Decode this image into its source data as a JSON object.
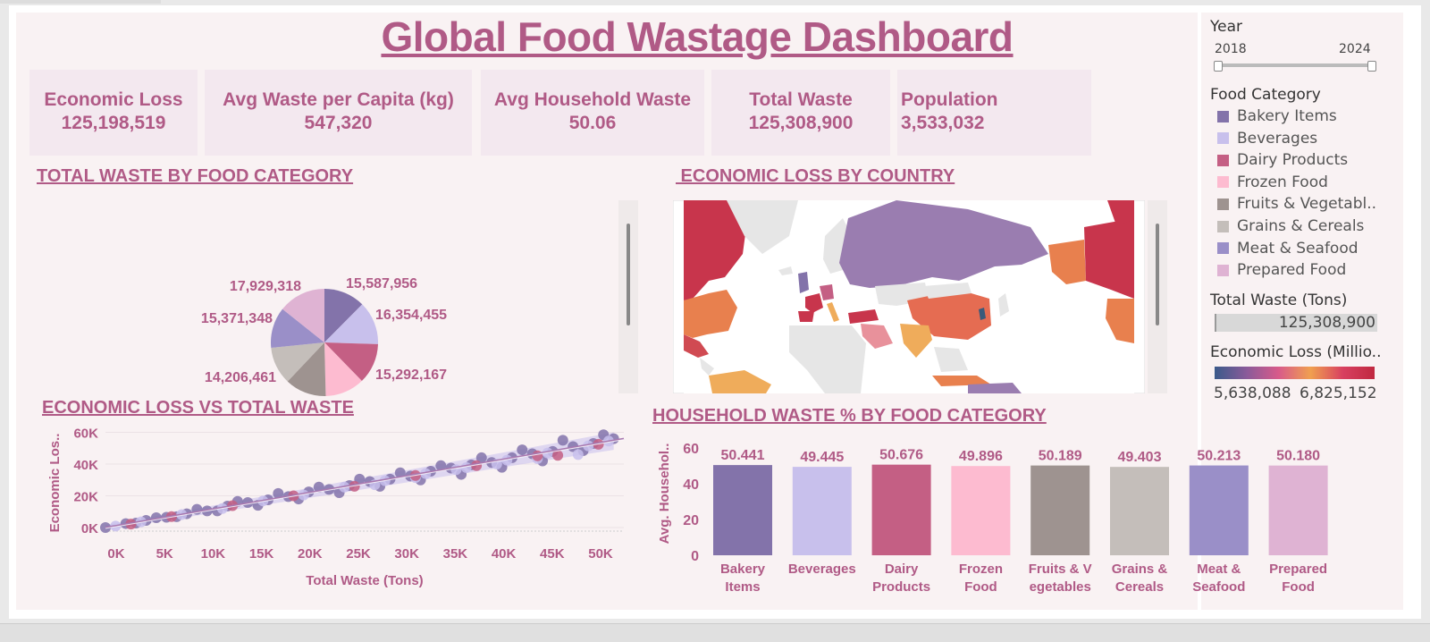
{
  "title": "Global Food Wastage Dashboard",
  "kpis": [
    {
      "label": "Economic Loss",
      "value": "125,198,519"
    },
    {
      "label": "Avg Waste per Capita (kg)",
      "value": "547,320"
    },
    {
      "label": "Avg Household Waste",
      "value": "50.06"
    },
    {
      "label": "Total Waste",
      "value": "125,308,900"
    },
    {
      "label": "Population",
      "value": "3,533,032"
    }
  ],
  "sections": {
    "pie": "TOTAL WASTE BY FOOD CATEGORY",
    "map": " ECONOMIC LOSS BY COUNTRY",
    "scatter": "ECONOMIC LOSS VS TOTAL WASTE",
    "bar": "HOUSEHOLD WASTE % BY FOOD CATEGORY"
  },
  "filters": {
    "year_title": "Year",
    "year_min": "2018",
    "year_max": "2024",
    "category_title": "Food Category",
    "categories": [
      {
        "label": "Bakery Items",
        "color": "#8373aa"
      },
      {
        "label": "Beverages",
        "color": "#c8c0ec"
      },
      {
        "label": "Dairy Products",
        "color": "#c45f84"
      },
      {
        "label": "Frozen Food",
        "color": "#fdbbd0"
      },
      {
        "label": "Fruits & Vegetabl..",
        "color": "#9e9390"
      },
      {
        "label": "Grains & Cereals",
        "color": "#c4beba"
      },
      {
        "label": "Meat & Seafood",
        "color": "#9a8fc8"
      },
      {
        "label": "Prepared Food",
        "color": "#dfb3d3"
      }
    ],
    "total_waste_title": "Total Waste (Tons)",
    "total_waste_value": "125,308,900",
    "econ_title": "Economic Loss (Millio..",
    "econ_min": "5,638,088",
    "econ_max": "6,825,152"
  },
  "chart_data": [
    {
      "type": "pie",
      "title": "TOTAL WASTE BY FOOD CATEGORY",
      "slices": [
        {
          "category": "Bakery Items",
          "value": 15587956,
          "label": "15,587,956",
          "color": "#8373aa"
        },
        {
          "category": "Beverages",
          "value": 16354455,
          "label": "16,354,455",
          "color": "#c8c0ec"
        },
        {
          "category": "Dairy Products",
          "value": 15292167,
          "label": "15,292,167",
          "color": "#c45f84"
        },
        {
          "category": "Frozen Food",
          "value": 14900000,
          "label": "",
          "color": "#fdbbd0"
        },
        {
          "category": "Fruits & Vegetables",
          "value": 15600000,
          "label": "",
          "color": "#9e9390"
        },
        {
          "category": "Grains & Cereals",
          "value": 14206461,
          "label": "14,206,461",
          "color": "#c4beba"
        },
        {
          "category": "Meat & Seafood",
          "value": 15371348,
          "label": "15,371,348",
          "color": "#9a8fc8"
        },
        {
          "category": "Prepared Food",
          "value": 17929318,
          "label": "17,929,318",
          "color": "#dfb3d3"
        }
      ]
    },
    {
      "type": "scatter",
      "title": "ECONOMIC LOSS VS TOTAL WASTE",
      "xlabel": "Total Waste (Tons)",
      "ylabel": "Economic Los..",
      "xticks": [
        "0K",
        "5K",
        "10K",
        "15K",
        "20K",
        "25K",
        "30K",
        "35K",
        "40K",
        "45K",
        "50K"
      ],
      "yticks": [
        "0K",
        "20K",
        "40K",
        "60K"
      ],
      "xlim": [
        0,
        51000
      ],
      "ylim": [
        0,
        62000
      ],
      "trend": {
        "x": [
          0,
          51000
        ],
        "y": [
          0,
          56000
        ]
      },
      "series": [
        {
          "color": "#8373aa",
          "points": [
            [
              0,
              0
            ],
            [
              2000,
              2500
            ],
            [
              4000,
              4500
            ],
            [
              6000,
              6500
            ],
            [
              8000,
              8700
            ],
            [
              10000,
              10500
            ],
            [
              12000,
              13500
            ],
            [
              14000,
              15800
            ],
            [
              16000,
              17500
            ],
            [
              18000,
              19500
            ],
            [
              20000,
              22500
            ],
            [
              22000,
              24000
            ],
            [
              24000,
              26500
            ],
            [
              26000,
              29000
            ],
            [
              28000,
              30500
            ],
            [
              30000,
              32500
            ],
            [
              32000,
              35500
            ],
            [
              34000,
              37500
            ],
            [
              36000,
              39500
            ],
            [
              38000,
              41000
            ],
            [
              40000,
              44000
            ],
            [
              42000,
              46500
            ],
            [
              44000,
              48000
            ],
            [
              46000,
              51000
            ],
            [
              48000,
              53000
            ],
            [
              50000,
              56000
            ],
            [
              49000,
              58500
            ],
            [
              47000,
              48500
            ],
            [
              45000,
              55000
            ],
            [
              43000,
              42000
            ],
            [
              41000,
              49000
            ],
            [
              39000,
              38000
            ],
            [
              37000,
              44000
            ],
            [
              35000,
              33500
            ],
            [
              33000,
              39000
            ],
            [
              31000,
              30000
            ],
            [
              29000,
              34500
            ],
            [
              27000,
              26000
            ],
            [
              25000,
              30500
            ],
            [
              23000,
              22000
            ],
            [
              21000,
              25500
            ],
            [
              19000,
              18000
            ],
            [
              17000,
              21500
            ],
            [
              15000,
              14000
            ],
            [
              13000,
              16500
            ],
            [
              11000,
              10500
            ],
            [
              9000,
              11500
            ],
            [
              7000,
              6800
            ],
            [
              5000,
              6200
            ],
            [
              3000,
              2800
            ]
          ]
        },
        {
          "color": "#c8c0ec",
          "points": [
            [
              1000,
              900
            ],
            [
              3500,
              3600
            ],
            [
              7500,
              8200
            ],
            [
              11500,
              12000
            ],
            [
              15500,
              16800
            ],
            [
              19500,
              20500
            ],
            [
              23500,
              25500
            ],
            [
              27500,
              29500
            ],
            [
              31500,
              34000
            ],
            [
              35500,
              37800
            ],
            [
              39500,
              42500
            ],
            [
              43500,
              47000
            ],
            [
              47500,
              51500
            ],
            [
              49500,
              54500
            ],
            [
              46500,
              46000
            ],
            [
              42500,
              43500
            ],
            [
              38500,
              40000
            ],
            [
              34500,
              36500
            ],
            [
              30500,
              31500
            ],
            [
              26500,
              27000
            ]
          ]
        },
        {
          "color": "#c45f84",
          "points": [
            [
              2500,
              2200
            ],
            [
              6500,
              6900
            ],
            [
              12500,
              13800
            ],
            [
              18500,
              20000
            ],
            [
              24500,
              26000
            ],
            [
              30500,
              32800
            ],
            [
              36500,
              39000
            ],
            [
              42500,
              45200
            ],
            [
              48500,
              52500
            ],
            [
              44500,
              45500
            ]
          ]
        }
      ]
    },
    {
      "type": "bar",
      "title": "HOUSEHOLD WASTE % BY FOOD CATEGORY",
      "ylabel": "Avg. Househol..",
      "yticks": [
        "0",
        "20",
        "40",
        "60"
      ],
      "ylim": [
        0,
        60
      ],
      "categories": [
        {
          "line1": "Bakery",
          "line2": "Items"
        },
        {
          "line1": "Beverages",
          "line2": ""
        },
        {
          "line1": "Dairy",
          "line2": "Products"
        },
        {
          "line1": "Frozen",
          "line2": "Food"
        },
        {
          "line1": "Fruits & V",
          "line2": "egetables"
        },
        {
          "line1": "Grains &",
          "line2": "Cereals"
        },
        {
          "line1": "Meat &",
          "line2": "Seafood"
        },
        {
          "line1": "Prepared",
          "line2": "Food"
        }
      ],
      "values": [
        50.441,
        49.445,
        50.676,
        49.896,
        50.189,
        49.403,
        50.213,
        50.18
      ],
      "labels": [
        "50.441",
        "49.445",
        "50.676",
        "49.896",
        "50.189",
        "49.403",
        "50.213",
        "50.180"
      ],
      "colors": [
        "#8373aa",
        "#c8c0ec",
        "#c45f84",
        "#fdbbd0",
        "#9e9390",
        "#c4beba",
        "#9a8fc8",
        "#dfb3d3"
      ]
    }
  ]
}
